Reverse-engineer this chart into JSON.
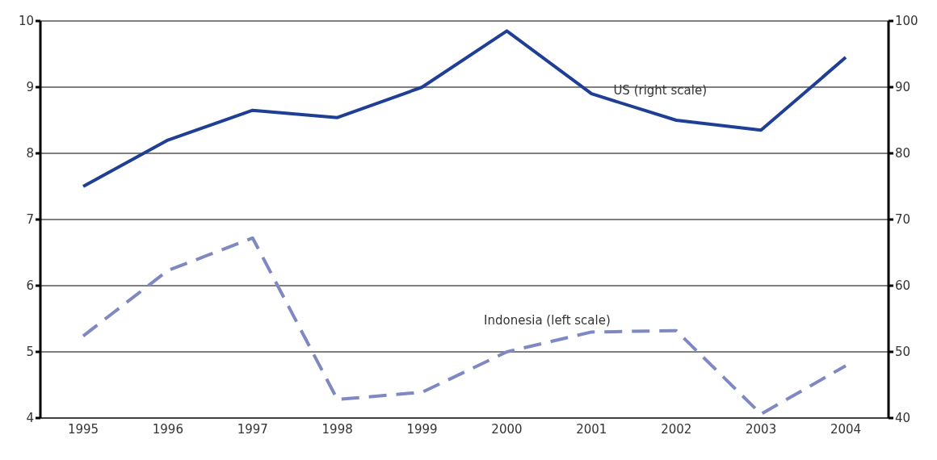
{
  "chart_data": {
    "type": "line",
    "categories": [
      "1995",
      "1996",
      "1997",
      "1998",
      "1999",
      "2000",
      "2001",
      "2002",
      "2003",
      "2004"
    ],
    "series": [
      {
        "name": "US (right scale)",
        "color": "#1f3f94",
        "axis": "y2",
        "line_style": "solid",
        "values": [
          75,
          82,
          86.5,
          85.4,
          90,
          98.5,
          89,
          85,
          83.5,
          94.5
        ]
      },
      {
        "name": "Indonesia (left scale)",
        "color": "#8088c2",
        "line_style": "dashed",
        "values": [
          5.24,
          6.23,
          6.72,
          4.28,
          4.39,
          5.0,
          5.3,
          5.32,
          4.06,
          4.79
        ]
      }
    ],
    "ylim": [
      4,
      10
    ],
    "yticks": [
      4,
      5,
      6,
      7,
      8,
      9,
      10
    ],
    "y2lim": [
      40,
      100
    ],
    "y2ticks": [
      40,
      50,
      60,
      70,
      80,
      90,
      100
    ],
    "grid": "y",
    "legend": false,
    "marker": "none"
  }
}
